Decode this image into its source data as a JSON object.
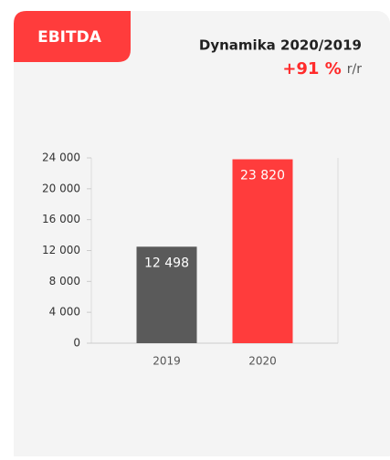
{
  "badge": "EBITDA",
  "chart_data": {
    "type": "bar",
    "title": "Dynamika 2020/2019",
    "change": "+91 %",
    "change_unit": "r/r",
    "categories": [
      "2019",
      "2020"
    ],
    "values": [
      12498,
      23820
    ],
    "value_labels": [
      "12 498",
      "23 820"
    ],
    "colors": [
      "#5a5a5a",
      "#ff3c3c"
    ],
    "ylim": [
      0,
      24000
    ],
    "yticks": [
      0,
      {
        "value": 4000,
        "label": "4 000"
      },
      {
        "value": 8000,
        "label": "8 000"
      },
      {
        "value": 12000,
        "label": "12 000"
      },
      {
        "value": 16000,
        "label": "16 000"
      },
      {
        "value": 20000,
        "label": "20 000"
      },
      {
        "value": 24000,
        "label": "24 000"
      }
    ],
    "grid": false
  }
}
